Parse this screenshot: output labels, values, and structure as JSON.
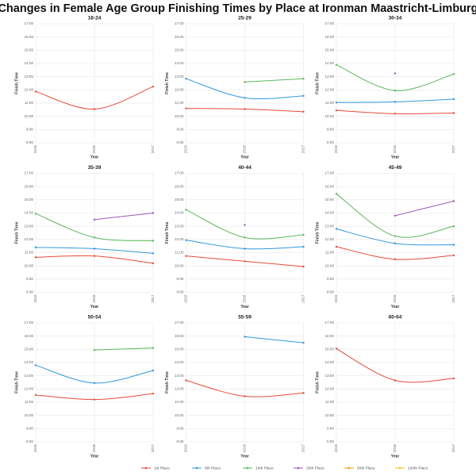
{
  "title": "Changes in Female Age Group Finishing Times by Place at Ironman Maastricht-Limburg",
  "chart_data": [
    {
      "type": "line",
      "title": "18-24",
      "x_label": "Year",
      "y_label": "Finish Time",
      "categories": [
        "2015",
        "2016",
        "2017"
      ],
      "ylim": [
        8,
        17
      ],
      "yticks": [
        {
          "value": 8,
          "label": "8:00"
        },
        {
          "value": 9,
          "label": "9:00"
        },
        {
          "value": 10,
          "label": "10:00"
        },
        {
          "value": 11,
          "label": "11:00"
        },
        {
          "value": 12,
          "label": "12:00"
        },
        {
          "value": 13,
          "label": "13:00"
        },
        {
          "value": 14,
          "label": "14:00"
        },
        {
          "value": 15,
          "label": "15:00"
        },
        {
          "value": 16,
          "label": "16:00"
        },
        {
          "value": 17,
          "label": "17:00"
        }
      ],
      "grid": true,
      "series": [
        {
          "name": "1st Place",
          "color": "#e74c3c",
          "values": [
            11.88,
            10.55,
            12.25
          ]
        },
        {
          "name": "5th Place",
          "color": "#3498db",
          "values": [
            null,
            null,
            null
          ]
        },
        {
          "name": "10th Place",
          "color": "#5cb85c",
          "values": [
            null,
            null,
            null
          ]
        },
        {
          "name": "20th Place",
          "color": "#9b59b6",
          "values": [
            null,
            null,
            null
          ]
        },
        {
          "name": "50th Place",
          "color": "#f39c12",
          "values": [
            null,
            null,
            null
          ]
        },
        {
          "name": "100th Place",
          "color": "#f1c40f",
          "values": [
            null,
            null,
            null
          ]
        }
      ]
    },
    {
      "type": "line",
      "title": "25-29",
      "x_label": "Year",
      "y_label": "Finish Time",
      "categories": [
        "2015",
        "2016",
        "2017"
      ],
      "ylim": [
        8,
        17
      ],
      "yticks": [
        {
          "value": 8,
          "label": "8:00"
        },
        {
          "value": 9,
          "label": "9:00"
        },
        {
          "value": 10,
          "label": "10:00"
        },
        {
          "value": 11,
          "label": "11:00"
        },
        {
          "value": 12,
          "label": "12:00"
        },
        {
          "value": 13,
          "label": "13:00"
        },
        {
          "value": 14,
          "label": "14:00"
        },
        {
          "value": 15,
          "label": "15:00"
        },
        {
          "value": 16,
          "label": "16:00"
        },
        {
          "value": 17,
          "label": "17:00"
        }
      ],
      "grid": true,
      "series": [
        {
          "name": "1st Place",
          "color": "#e74c3c",
          "values": [
            10.6,
            10.55,
            10.35
          ]
        },
        {
          "name": "5th Place",
          "color": "#3498db",
          "values": [
            12.85,
            11.4,
            11.55
          ]
        },
        {
          "name": "10th Place",
          "color": "#5cb85c",
          "values": [
            null,
            12.6,
            12.85
          ]
        },
        {
          "name": "20th Place",
          "color": "#9b59b6",
          "values": [
            null,
            null,
            null
          ]
        },
        {
          "name": "50th Place",
          "color": "#f39c12",
          "values": [
            null,
            null,
            null
          ]
        },
        {
          "name": "100th Place",
          "color": "#f1c40f",
          "values": [
            null,
            null,
            null
          ]
        }
      ]
    },
    {
      "type": "line",
      "title": "30-34",
      "x_label": "Year",
      "y_label": "Finish Time",
      "categories": [
        "2015",
        "2016",
        "2017"
      ],
      "ylim": [
        8,
        17
      ],
      "yticks": [
        {
          "value": 8,
          "label": "8:00"
        },
        {
          "value": 9,
          "label": "9:00"
        },
        {
          "value": 10,
          "label": "10:00"
        },
        {
          "value": 11,
          "label": "11:00"
        },
        {
          "value": 12,
          "label": "12:00"
        },
        {
          "value": 13,
          "label": "13:00"
        },
        {
          "value": 14,
          "label": "14:00"
        },
        {
          "value": 15,
          "label": "15:00"
        },
        {
          "value": 16,
          "label": "16:00"
        },
        {
          "value": 17,
          "label": "17:00"
        }
      ],
      "grid": true,
      "series": [
        {
          "name": "1st Place",
          "color": "#e74c3c",
          "values": [
            10.45,
            10.2,
            10.25
          ]
        },
        {
          "name": "5th Place",
          "color": "#3498db",
          "values": [
            11.05,
            11.1,
            11.3
          ]
        },
        {
          "name": "10th Place",
          "color": "#5cb85c",
          "values": [
            13.9,
            11.95,
            13.2
          ]
        },
        {
          "name": "20th Place",
          "color": "#9b59b6",
          "values": [
            null,
            13.25,
            null
          ]
        },
        {
          "name": "50th Place",
          "color": "#f39c12",
          "values": [
            null,
            null,
            null
          ]
        },
        {
          "name": "100th Place",
          "color": "#f1c40f",
          "values": [
            null,
            null,
            null
          ]
        }
      ]
    },
    {
      "type": "line",
      "title": "35-39",
      "x_label": "Year",
      "y_label": "Finish Time",
      "categories": [
        "2015",
        "2016",
        "2017"
      ],
      "ylim": [
        8,
        17
      ],
      "yticks": [
        {
          "value": 8,
          "label": "8:00"
        },
        {
          "value": 9,
          "label": "9:00"
        },
        {
          "value": 10,
          "label": "10:00"
        },
        {
          "value": 11,
          "label": "11:00"
        },
        {
          "value": 12,
          "label": "12:00"
        },
        {
          "value": 13,
          "label": "13:00"
        },
        {
          "value": 14,
          "label": "14:00"
        },
        {
          "value": 15,
          "label": "15:00"
        },
        {
          "value": 16,
          "label": "16:00"
        },
        {
          "value": 17,
          "label": "17:00"
        }
      ],
      "grid": true,
      "series": [
        {
          "name": "1st Place",
          "color": "#e74c3c",
          "values": [
            10.65,
            10.75,
            10.2
          ]
        },
        {
          "name": "5th Place",
          "color": "#3498db",
          "values": [
            11.4,
            11.3,
            10.95
          ]
        },
        {
          "name": "10th Place",
          "color": "#5cb85c",
          "values": [
            13.95,
            12.15,
            11.9
          ]
        },
        {
          "name": "20th Place",
          "color": "#9b59b6",
          "values": [
            null,
            13.5,
            14.0
          ]
        },
        {
          "name": "50th Place",
          "color": "#f39c12",
          "values": [
            null,
            null,
            null
          ]
        },
        {
          "name": "100th Place",
          "color": "#f1c40f",
          "values": [
            null,
            null,
            null
          ]
        }
      ]
    },
    {
      "type": "line",
      "title": "40-44",
      "x_label": "Year",
      "y_label": "Finish Time",
      "categories": [
        "2015",
        "2016",
        "2017"
      ],
      "ylim": [
        8,
        17
      ],
      "yticks": [
        {
          "value": 8,
          "label": "8:00"
        },
        {
          "value": 9,
          "label": "9:00"
        },
        {
          "value": 10,
          "label": "10:00"
        },
        {
          "value": 11,
          "label": "11:00"
        },
        {
          "value": 12,
          "label": "12:00"
        },
        {
          "value": 13,
          "label": "13:00"
        },
        {
          "value": 14,
          "label": "14:00"
        },
        {
          "value": 15,
          "label": "15:00"
        },
        {
          "value": 16,
          "label": "16:00"
        },
        {
          "value": 17,
          "label": "17:00"
        }
      ],
      "grid": true,
      "series": [
        {
          "name": "1st Place",
          "color": "#e74c3c",
          "values": [
            10.75,
            10.35,
            9.95
          ]
        },
        {
          "name": "5th Place",
          "color": "#3498db",
          "values": [
            11.95,
            11.3,
            11.45
          ]
        },
        {
          "name": "10th Place",
          "color": "#5cb85c",
          "values": [
            14.25,
            12.15,
            12.35
          ]
        },
        {
          "name": "20th Place",
          "color": "#9b59b6",
          "values": [
            null,
            13.1,
            null
          ]
        },
        {
          "name": "50th Place",
          "color": "#f39c12",
          "values": [
            null,
            null,
            null
          ]
        },
        {
          "name": "100th Place",
          "color": "#f1c40f",
          "values": [
            null,
            null,
            null
          ]
        }
      ]
    },
    {
      "type": "line",
      "title": "45-49",
      "x_label": "Year",
      "y_label": "Finish Time",
      "categories": [
        "2015",
        "2016",
        "2017"
      ],
      "ylim": [
        8,
        17
      ],
      "yticks": [
        {
          "value": 8,
          "label": "8:00"
        },
        {
          "value": 9,
          "label": "9:00"
        },
        {
          "value": 10,
          "label": "10:00"
        },
        {
          "value": 11,
          "label": "11:00"
        },
        {
          "value": 12,
          "label": "12:00"
        },
        {
          "value": 13,
          "label": "13:00"
        },
        {
          "value": 14,
          "label": "14:00"
        },
        {
          "value": 15,
          "label": "15:00"
        },
        {
          "value": 16,
          "label": "16:00"
        },
        {
          "value": 17,
          "label": "17:00"
        }
      ],
      "grid": true,
      "series": [
        {
          "name": "1st Place",
          "color": "#e74c3c",
          "values": [
            11.45,
            10.5,
            10.8
          ]
        },
        {
          "name": "5th Place",
          "color": "#3498db",
          "values": [
            12.8,
            11.7,
            11.6
          ]
        },
        {
          "name": "10th Place",
          "color": "#5cb85c",
          "values": [
            15.45,
            12.25,
            13.0
          ]
        },
        {
          "name": "20th Place",
          "color": "#9b59b6",
          "values": [
            null,
            13.8,
            14.9
          ]
        },
        {
          "name": "50th Place",
          "color": "#f39c12",
          "values": [
            null,
            null,
            null
          ]
        },
        {
          "name": "100th Place",
          "color": "#f1c40f",
          "values": [
            null,
            null,
            null
          ]
        }
      ]
    },
    {
      "type": "line",
      "title": "50-54",
      "x_label": "Year",
      "y_label": "Finish Time",
      "categories": [
        "2015",
        "2016",
        "2017"
      ],
      "ylim": [
        8,
        17
      ],
      "yticks": [
        {
          "value": 8,
          "label": "8:00"
        },
        {
          "value": 9,
          "label": "9:00"
        },
        {
          "value": 10,
          "label": "10:00"
        },
        {
          "value": 11,
          "label": "11:00"
        },
        {
          "value": 12,
          "label": "12:00"
        },
        {
          "value": 13,
          "label": "13:00"
        },
        {
          "value": 14,
          "label": "14:00"
        },
        {
          "value": 15,
          "label": "15:00"
        },
        {
          "value": 16,
          "label": "16:00"
        },
        {
          "value": 17,
          "label": "17:00"
        }
      ],
      "grid": true,
      "series": [
        {
          "name": "1st Place",
          "color": "#e74c3c",
          "values": [
            11.55,
            11.2,
            11.65
          ]
        },
        {
          "name": "5th Place",
          "color": "#3498db",
          "values": [
            13.8,
            12.45,
            13.4
          ]
        },
        {
          "name": "10th Place",
          "color": "#5cb85c",
          "values": [
            null,
            14.95,
            15.1
          ]
        },
        {
          "name": "20th Place",
          "color": "#9b59b6",
          "values": [
            null,
            null,
            null
          ]
        },
        {
          "name": "50th Place",
          "color": "#f39c12",
          "values": [
            null,
            null,
            null
          ]
        },
        {
          "name": "100th Place",
          "color": "#f1c40f",
          "values": [
            null,
            null,
            null
          ]
        }
      ]
    },
    {
      "type": "line",
      "title": "55-59",
      "x_label": "Year",
      "y_label": "Finish Time",
      "categories": [
        "2015",
        "2016",
        "2017"
      ],
      "ylim": [
        8,
        17
      ],
      "yticks": [
        {
          "value": 8,
          "label": "8:00"
        },
        {
          "value": 9,
          "label": "9:00"
        },
        {
          "value": 10,
          "label": "10:00"
        },
        {
          "value": 11,
          "label": "11:00"
        },
        {
          "value": 12,
          "label": "12:00"
        },
        {
          "value": 13,
          "label": "13:00"
        },
        {
          "value": 14,
          "label": "14:00"
        },
        {
          "value": 15,
          "label": "15:00"
        },
        {
          "value": 16,
          "label": "16:00"
        },
        {
          "value": 17,
          "label": "17:00"
        }
      ],
      "grid": true,
      "series": [
        {
          "name": "1st Place",
          "color": "#e74c3c",
          "values": [
            12.65,
            11.45,
            11.7
          ]
        },
        {
          "name": "5th Place",
          "color": "#3498db",
          "values": [
            null,
            15.95,
            15.5
          ]
        },
        {
          "name": "10th Place",
          "color": "#5cb85c",
          "values": [
            null,
            null,
            null
          ]
        },
        {
          "name": "20th Place",
          "color": "#9b59b6",
          "values": [
            null,
            null,
            null
          ]
        },
        {
          "name": "50th Place",
          "color": "#f39c12",
          "values": [
            null,
            null,
            null
          ]
        },
        {
          "name": "100th Place",
          "color": "#f1c40f",
          "values": [
            null,
            null,
            null
          ]
        }
      ]
    },
    {
      "type": "line",
      "title": "60-64",
      "x_label": "Year",
      "y_label": "Finish Time",
      "categories": [
        "2015",
        "2016",
        "2017"
      ],
      "ylim": [
        8,
        17
      ],
      "yticks": [
        {
          "value": 8,
          "label": "8:00"
        },
        {
          "value": 9,
          "label": "9:00"
        },
        {
          "value": 10,
          "label": "10:00"
        },
        {
          "value": 11,
          "label": "11:00"
        },
        {
          "value": 12,
          "label": "12:00"
        },
        {
          "value": 13,
          "label": "13:00"
        },
        {
          "value": 14,
          "label": "14:00"
        },
        {
          "value": 15,
          "label": "15:00"
        },
        {
          "value": 16,
          "label": "16:00"
        },
        {
          "value": 17,
          "label": "17:00"
        }
      ],
      "grid": true,
      "series": [
        {
          "name": "1st Place",
          "color": "#e74c3c",
          "values": [
            15.05,
            12.65,
            12.8
          ]
        },
        {
          "name": "5th Place",
          "color": "#3498db",
          "values": [
            null,
            null,
            null
          ]
        },
        {
          "name": "10th Place",
          "color": "#5cb85c",
          "values": [
            null,
            null,
            null
          ]
        },
        {
          "name": "20th Place",
          "color": "#9b59b6",
          "values": [
            null,
            null,
            null
          ]
        },
        {
          "name": "50th Place",
          "color": "#f39c12",
          "values": [
            null,
            null,
            null
          ]
        },
        {
          "name": "100th Place",
          "color": "#f1c40f",
          "values": [
            null,
            null,
            null
          ]
        }
      ]
    }
  ]
}
